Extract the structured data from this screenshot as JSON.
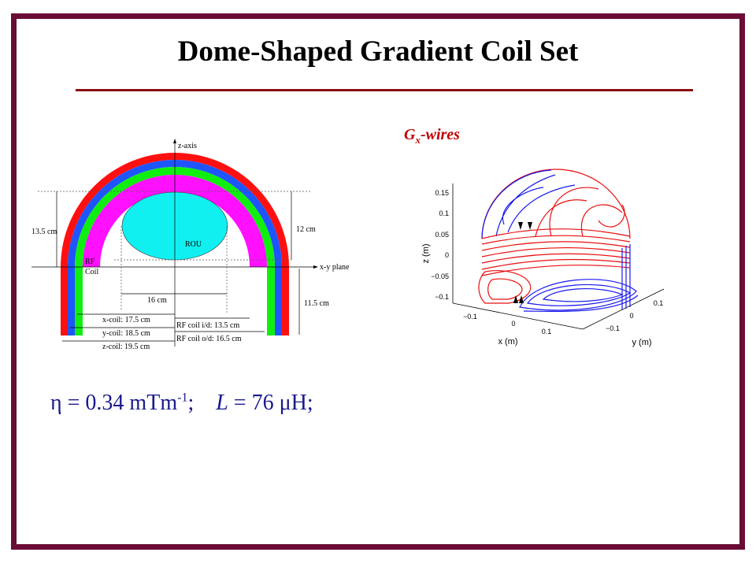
{
  "slide": {
    "title": "Dome-Shaped Gradient Coil Set",
    "frame_color": "#6a0c35",
    "rule_color": "#8b0f0f"
  },
  "diagram": {
    "z_axis": "z-axis",
    "xy_plane": "x-y plane",
    "rou": "ROU",
    "rf1": "RF",
    "rf2": "Coil",
    "h135": "13.5 cm",
    "h12": "12 cm",
    "w16": "16 cm",
    "h115": "11.5 cm",
    "xcoil": "x-coil: 17.5 cm",
    "ycoil": "y-coil: 18.5 cm",
    "zcoil": "z-coil: 19.5 cm",
    "rf_id": "RF coil i/d: 13.5 cm",
    "rf_od": "RF coil o/d: 16.5 cm",
    "colors": {
      "z": "#ff1010",
      "y": "#1f55ff",
      "x": "#10ee10",
      "rf": "#ff10ff",
      "rou": "#10f0f0"
    }
  },
  "plot": {
    "title_g": "G",
    "title_sub": "x",
    "title_rest": "-wires",
    "zlabel": "z (m)",
    "xlabel": "x (m)",
    "ylabel": "y (m)",
    "zticks": [
      "0.15",
      "0.1",
      "0.05",
      "0",
      "−0.05",
      "−0.1"
    ],
    "xticks": [
      "−0.1",
      "0",
      "0.1"
    ],
    "yticks": [
      "−0.1",
      "0",
      "0.1"
    ],
    "colors": {
      "a": "#e81010",
      "b": "#1a1aee"
    }
  },
  "equation": {
    "eta": "η = 0.34 mTm",
    "exp": "-1",
    "sep": ";    ",
    "L": "L",
    "rest": " = 76 μH;"
  }
}
